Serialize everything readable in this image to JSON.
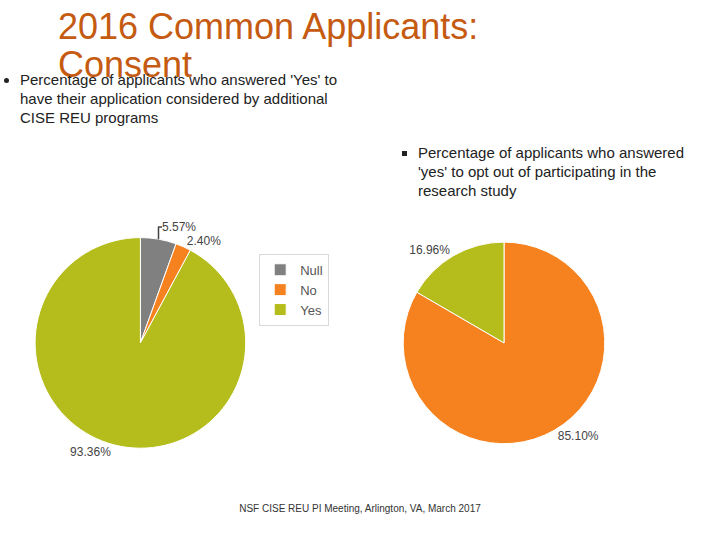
{
  "title": "2016 Common Applicants: Consent",
  "footer": "NSF CISE REU PI Meeting, Arlington, VA, March 2017",
  "chart_data": [
    {
      "type": "pie",
      "title": "Percentage of applicants who answered 'Yes' to have their application considered by additional CISE REU programs",
      "categories": [
        "Null",
        "No",
        "Yes"
      ],
      "values": [
        5.57,
        2.4,
        93.36
      ],
      "value_labels": [
        "5.57%",
        "2.40%",
        "93.36%"
      ],
      "colors": [
        "#808080",
        "#f5821f",
        "#b5bd1c"
      ],
      "data_labels": true,
      "legend": "right"
    },
    {
      "type": "pie",
      "title": "Percentage of applicants who answered 'yes' to opt out of participating in the research study",
      "categories": [
        "No",
        "Yes"
      ],
      "values": [
        85.1,
        16.96
      ],
      "value_labels": [
        "85.10%",
        "16.96%"
      ],
      "colors": [
        "#f5821f",
        "#b5bd1c"
      ],
      "data_labels": true,
      "legend": "right"
    }
  ]
}
